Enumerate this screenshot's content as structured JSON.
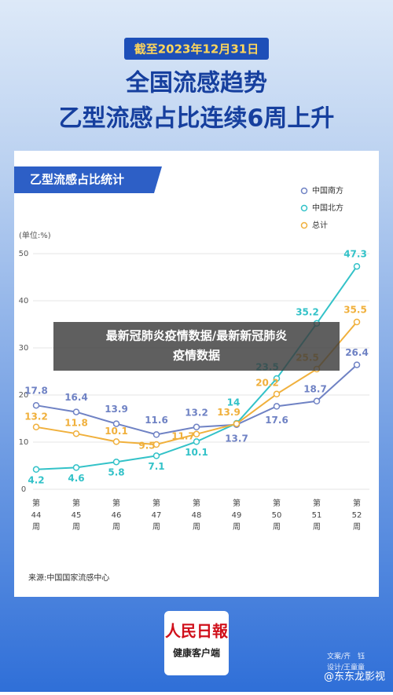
{
  "header": {
    "badge": "截至2023年12月31日",
    "title_line1": "全国流感趋势",
    "title_line2": "乙型流感占比连续6周上升"
  },
  "chart_data": {
    "type": "line",
    "title": "乙型流感占比统计",
    "y_label": "(单位:%)",
    "categories": [
      [
        "第",
        "44",
        "周"
      ],
      [
        "第",
        "45",
        "周"
      ],
      [
        "第",
        "46",
        "周"
      ],
      [
        "第",
        "47",
        "周"
      ],
      [
        "第",
        "48",
        "周"
      ],
      [
        "第",
        "49",
        "周"
      ],
      [
        "第",
        "50",
        "周"
      ],
      [
        "第",
        "51",
        "周"
      ],
      [
        "第",
        "52",
        "周"
      ]
    ],
    "series": [
      {
        "name": "中国南方",
        "color": "#6f82c4",
        "values": [
          17.8,
          16.4,
          13.9,
          11.6,
          13.2,
          13.7,
          17.6,
          18.7,
          26.4
        ]
      },
      {
        "name": "中国北方",
        "color": "#33c2c8",
        "values": [
          4.2,
          4.6,
          5.8,
          7.1,
          10.1,
          14,
          23.5,
          35.2,
          47.3
        ]
      },
      {
        "name": "总计",
        "color": "#f0b03c",
        "values": [
          13.2,
          11.8,
          10.1,
          9.5,
          11.7,
          13.9,
          20.2,
          25.5,
          35.5
        ]
      }
    ],
    "ylim": [
      0,
      50
    ],
    "yticks": [
      0,
      10,
      20,
      30,
      40,
      50
    ],
    "grid": true,
    "legend": "upper right",
    "source": "来源:中国国家流感中心"
  },
  "footer": {
    "brand": "人民日報",
    "brand_sub": "健康客户端",
    "credit1": "文案/齐　钰",
    "credit2": "设计/王童童",
    "watermark": "@东东龙影视"
  },
  "overlay": {
    "line1": "最新冠肺炎疫情数据/最新新冠肺炎",
    "line2": "疫情数据"
  }
}
